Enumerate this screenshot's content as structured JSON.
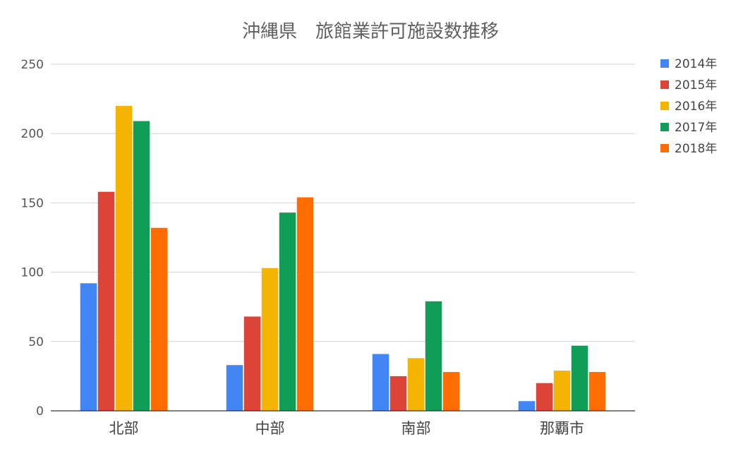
{
  "chart_data": {
    "type": "bar",
    "title": "沖縄県　旅館業許可施設数推移",
    "xlabel": "",
    "ylabel": "",
    "categories": [
      "北部",
      "中部",
      "南部",
      "那覇市"
    ],
    "ylim": [
      0,
      250
    ],
    "yticks": [
      0,
      50,
      100,
      150,
      200,
      250
    ],
    "grid": true,
    "legend_position": "right",
    "series": [
      {
        "name": "2014年",
        "color": "#4285f4",
        "values": [
          92,
          33,
          41,
          7
        ]
      },
      {
        "name": "2015年",
        "color": "#db4437",
        "values": [
          158,
          68,
          25,
          20
        ]
      },
      {
        "name": "2016年",
        "color": "#f4b400",
        "values": [
          220,
          103,
          38,
          29
        ]
      },
      {
        "name": "2017年",
        "color": "#0f9d58",
        "values": [
          209,
          143,
          79,
          47
        ]
      },
      {
        "name": "2018年",
        "color": "#ff6d01",
        "values": [
          132,
          154,
          28,
          28
        ]
      }
    ]
  }
}
